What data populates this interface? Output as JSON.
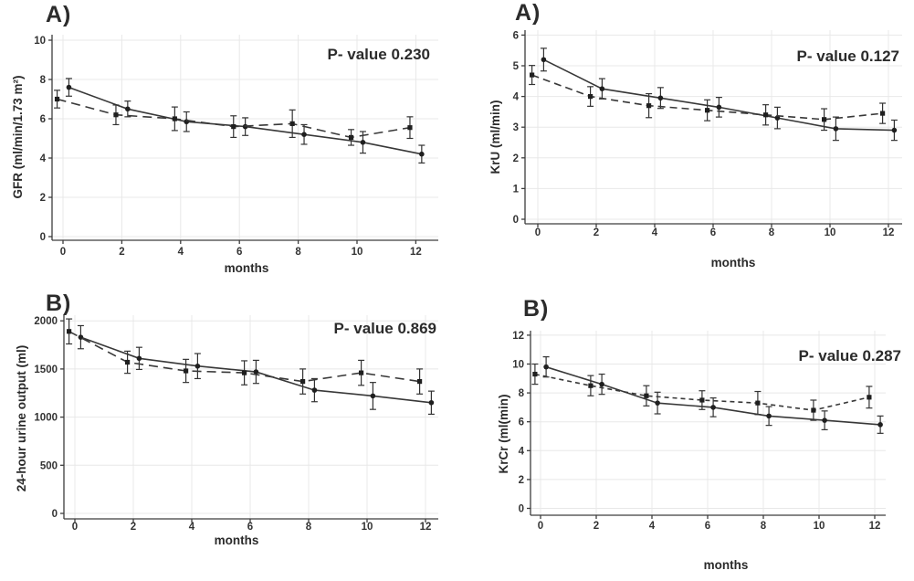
{
  "figure": {
    "background_color": "#ffffff",
    "text_color": "#2b2b2b",
    "line_color": "#383838",
    "axis_color": "#3d3d3d",
    "grid_color": "#e8e8e8",
    "marker_color": "#1f1f1f"
  },
  "chart_data": [
    {
      "id": "gfr",
      "type": "line",
      "panel_label": "A)",
      "p_value_label": "P- value 0.230",
      "xlabel": "months",
      "ylabel": "GFR (ml/min/1.73 m²)",
      "xlim": [
        -0.6,
        12.6
      ],
      "ylim": [
        0,
        10
      ],
      "xticks": [
        0,
        2,
        4,
        6,
        8,
        10,
        12
      ],
      "yticks": [
        0,
        2,
        4,
        6,
        8,
        10
      ],
      "x": [
        0,
        2,
        4,
        6,
        8,
        10,
        12
      ],
      "grid": true,
      "series": [
        {
          "name": "group-1-solid",
          "line_style": "solid",
          "marker": "circle",
          "x_offset": 0.2,
          "values": [
            7.6,
            6.5,
            5.85,
            5.6,
            5.2,
            4.8,
            4.2
          ],
          "errors": [
            0.45,
            0.4,
            0.5,
            0.45,
            0.5,
            0.55,
            0.45
          ]
        },
        {
          "name": "group-2-dashed",
          "line_style": "dashed",
          "marker": "square",
          "x_offset": -0.2,
          "values": [
            7.0,
            6.2,
            6.0,
            5.6,
            5.75,
            5.05,
            5.55
          ],
          "errors": [
            0.45,
            0.5,
            0.6,
            0.55,
            0.7,
            0.4,
            0.55
          ]
        }
      ]
    },
    {
      "id": "kru",
      "type": "line",
      "panel_label": "A)",
      "p_value_label": "P- value 0.127",
      "xlabel": "months",
      "ylabel": "KrU (ml/min)",
      "xlim": [
        -0.6,
        12.6
      ],
      "ylim": [
        0,
        6
      ],
      "xticks": [
        0,
        2,
        4,
        6,
        8,
        10,
        12
      ],
      "yticks": [
        0,
        1,
        2,
        3,
        4,
        5,
        6
      ],
      "x": [
        0,
        2,
        4,
        6,
        8,
        10,
        12
      ],
      "grid": true,
      "series": [
        {
          "name": "group-1-solid",
          "line_style": "solid",
          "marker": "circle",
          "x_offset": 0.2,
          "values": [
            5.2,
            4.25,
            3.95,
            3.65,
            3.3,
            2.95,
            2.9
          ],
          "errors": [
            0.37,
            0.33,
            0.34,
            0.32,
            0.35,
            0.38,
            0.33
          ]
        },
        {
          "name": "group-2-dashed",
          "line_style": "dashed",
          "marker": "square",
          "x_offset": -0.2,
          "values": [
            4.7,
            4.0,
            3.7,
            3.55,
            3.4,
            3.25,
            3.45
          ],
          "errors": [
            0.31,
            0.32,
            0.39,
            0.34,
            0.33,
            0.35,
            0.33
          ]
        }
      ]
    },
    {
      "id": "urine-output",
      "type": "line",
      "panel_label": "B)",
      "p_value_label": "P- value 0.869",
      "xlabel": "months",
      "ylabel": "24-hour urine output (ml)",
      "xlim": [
        -0.6,
        12.6
      ],
      "ylim": [
        0,
        2000
      ],
      "xticks": [
        0,
        2,
        4,
        6,
        8,
        10,
        12
      ],
      "yticks": [
        0,
        500,
        1000,
        1500,
        2000
      ],
      "x": [
        0,
        2,
        4,
        6,
        8,
        10,
        12
      ],
      "grid": true,
      "series": [
        {
          "name": "group-1-solid",
          "line_style": "solid",
          "marker": "circle",
          "x_offset": 0.2,
          "values": [
            1830,
            1610,
            1530,
            1470,
            1280,
            1220,
            1150
          ],
          "errors": [
            120,
            115,
            130,
            120,
            120,
            140,
            120
          ]
        },
        {
          "name": "group-2-dashed",
          "line_style": "dashed",
          "marker": "square",
          "x_offset": -0.2,
          "values": [
            1890,
            1570,
            1480,
            1460,
            1370,
            1460,
            1370
          ],
          "errors": [
            130,
            115,
            120,
            125,
            130,
            130,
            130
          ]
        }
      ]
    },
    {
      "id": "krcr",
      "type": "line",
      "panel_label": "B)",
      "p_value_label": "P- value 0.287",
      "xlabel": "months",
      "ylabel": "KrCr (ml(min)",
      "xlim": [
        -0.6,
        12.6
      ],
      "ylim": [
        0,
        12
      ],
      "xticks": [
        0,
        2,
        4,
        6,
        8,
        10,
        12
      ],
      "yticks": [
        0,
        2,
        4,
        6,
        8,
        10,
        12
      ],
      "x": [
        0,
        2,
        4,
        6,
        8,
        10,
        12
      ],
      "grid": true,
      "series": [
        {
          "name": "group-1-solid",
          "line_style": "solid",
          "marker": "circle",
          "x_offset": 0.2,
          "values": [
            9.8,
            8.6,
            7.3,
            7.0,
            6.4,
            6.1,
            5.8
          ],
          "errors": [
            0.7,
            0.7,
            0.75,
            0.65,
            0.65,
            0.65,
            0.6
          ]
        },
        {
          "name": "group-2-dashed",
          "line_style": "dashed",
          "marker": "square",
          "x_offset": -0.2,
          "values": [
            9.3,
            8.5,
            7.8,
            7.5,
            7.3,
            6.8,
            7.7
          ],
          "errors": [
            0.7,
            0.7,
            0.7,
            0.65,
            0.8,
            0.7,
            0.75
          ]
        }
      ]
    }
  ]
}
